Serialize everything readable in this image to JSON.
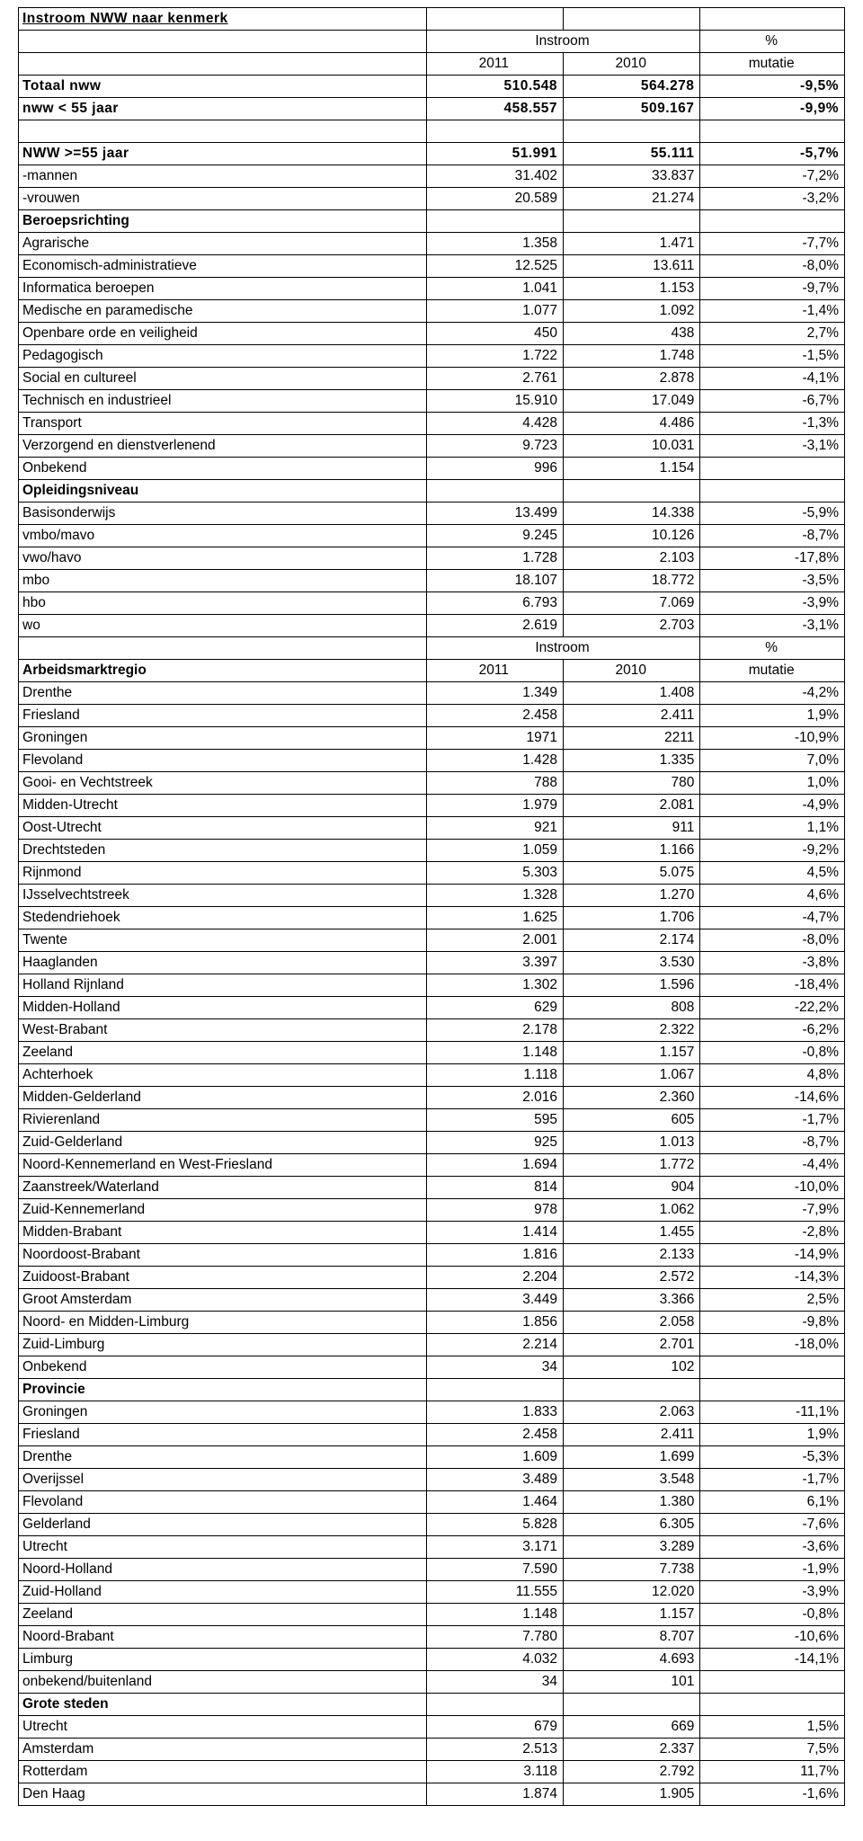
{
  "title": "Instroom NWW naar kenmerk",
  "headers": {
    "instroom": "Instroom",
    "pct": "%",
    "y2011": "2011",
    "y2010": "2010",
    "mutatie": "mutatie"
  },
  "rows": [
    {
      "label": "Totaal nww",
      "v1": "510.548",
      "v2": "564.278",
      "pct": "-9,5%",
      "style": "heavy"
    },
    {
      "label": "nww < 55 jaar",
      "v1": "458.557",
      "v2": "509.167",
      "pct": "-9,9%",
      "style": "heavy"
    },
    {
      "blank": true
    },
    {
      "label": "NWW >=55 jaar",
      "v1": "51.991",
      "v2": "55.111",
      "pct": "-5,7%",
      "style": "heavy"
    },
    {
      "label": "-mannen",
      "v1": "31.402",
      "v2": "33.837",
      "pct": "-7,2%"
    },
    {
      "label": "-vrouwen",
      "v1": "20.589",
      "v2": "21.274",
      "pct": "-3,2%"
    },
    {
      "label": "Beroepsrichting",
      "style": "bold",
      "section": true
    },
    {
      "label": "Agrarische",
      "v1": "1.358",
      "v2": "1.471",
      "pct": "-7,7%"
    },
    {
      "label": "Economisch-administratieve",
      "v1": "12.525",
      "v2": "13.611",
      "pct": "-8,0%"
    },
    {
      "label": "Informatica beroepen",
      "v1": "1.041",
      "v2": "1.153",
      "pct": "-9,7%"
    },
    {
      "label": "Medische en paramedische",
      "v1": "1.077",
      "v2": "1.092",
      "pct": "-1,4%"
    },
    {
      "label": "Openbare orde en veiligheid",
      "v1": "450",
      "v2": "438",
      "pct": "2,7%"
    },
    {
      "label": "Pedagogisch",
      "v1": "1.722",
      "v2": "1.748",
      "pct": "-1,5%"
    },
    {
      "label": "Social en cultureel",
      "v1": "2.761",
      "v2": "2.878",
      "pct": "-4,1%"
    },
    {
      "label": "Technisch en industrieel",
      "v1": "15.910",
      "v2": "17.049",
      "pct": "-6,7%"
    },
    {
      "label": "Transport",
      "v1": "4.428",
      "v2": "4.486",
      "pct": "-1,3%"
    },
    {
      "label": "Verzorgend en dienstverlenend",
      "v1": "9.723",
      "v2": "10.031",
      "pct": "-3,1%"
    },
    {
      "label": "Onbekend",
      "v1": "996",
      "v2": "1.154",
      "pct": ""
    },
    {
      "label": "Opleidingsniveau",
      "style": "bold",
      "section": true
    },
    {
      "label": "Basisonderwijs",
      "v1": "13.499",
      "v2": "14.338",
      "pct": "-5,9%"
    },
    {
      "label": "vmbo/mavo",
      "v1": "9.245",
      "v2": "10.126",
      "pct": "-8,7%"
    },
    {
      "label": "vwo/havo",
      "v1": "1.728",
      "v2": "2.103",
      "pct": "-17,8%"
    },
    {
      "label": "mbo",
      "v1": "18.107",
      "v2": "18.772",
      "pct": "-3,5%"
    },
    {
      "label": "hbo",
      "v1": "6.793",
      "v2": "7.069",
      "pct": "-3,9%"
    },
    {
      "label": "wo",
      "v1": "2.619",
      "v2": "2.703",
      "pct": "-3,1%"
    },
    {
      "subheader": true
    },
    {
      "label": "Arbeidsmarktregio",
      "v1": "2011",
      "v2": "2010",
      "pct": "mutatie",
      "style": "bold",
      "subheader2": true
    },
    {
      "label": "Drenthe",
      "v1": "1.349",
      "v2": "1.408",
      "pct": "-4,2%"
    },
    {
      "label": "Friesland",
      "v1": "2.458",
      "v2": "2.411",
      "pct": "1,9%"
    },
    {
      "label": "Groningen",
      "v1": "1971",
      "v2": "2211",
      "pct": "-10,9%"
    },
    {
      "label": "Flevoland",
      "v1": "1.428",
      "v2": "1.335",
      "pct": "7,0%"
    },
    {
      "label": "Gooi- en Vechtstreek",
      "v1": "788",
      "v2": "780",
      "pct": "1,0%"
    },
    {
      "label": "Midden-Utrecht",
      "v1": "1.979",
      "v2": "2.081",
      "pct": "-4,9%"
    },
    {
      "label": "Oost-Utrecht",
      "v1": "921",
      "v2": "911",
      "pct": "1,1%"
    },
    {
      "label": "Drechtsteden",
      "v1": "1.059",
      "v2": "1.166",
      "pct": "-9,2%"
    },
    {
      "label": "Rijnmond",
      "v1": "5.303",
      "v2": "5.075",
      "pct": "4,5%"
    },
    {
      "label": "IJsselvechtstreek",
      "v1": "1.328",
      "v2": "1.270",
      "pct": "4,6%"
    },
    {
      "label": "Stedendriehoek",
      "v1": "1.625",
      "v2": "1.706",
      "pct": "-4,7%"
    },
    {
      "label": "Twente",
      "v1": "2.001",
      "v2": "2.174",
      "pct": "-8,0%"
    },
    {
      "label": "Haaglanden",
      "v1": "3.397",
      "v2": "3.530",
      "pct": "-3,8%"
    },
    {
      "label": "Holland Rijnland",
      "v1": "1.302",
      "v2": "1.596",
      "pct": "-18,4%"
    },
    {
      "label": "Midden-Holland",
      "v1": "629",
      "v2": "808",
      "pct": "-22,2%"
    },
    {
      "label": "West-Brabant",
      "v1": "2.178",
      "v2": "2.322",
      "pct": "-6,2%"
    },
    {
      "label": "Zeeland",
      "v1": "1.148",
      "v2": "1.157",
      "pct": "-0,8%"
    },
    {
      "label": "Achterhoek",
      "v1": "1.118",
      "v2": "1.067",
      "pct": "4,8%"
    },
    {
      "label": "Midden-Gelderland",
      "v1": "2.016",
      "v2": "2.360",
      "pct": "-14,6%"
    },
    {
      "label": "Rivierenland",
      "v1": "595",
      "v2": "605",
      "pct": "-1,7%"
    },
    {
      "label": "Zuid-Gelderland",
      "v1": "925",
      "v2": "1.013",
      "pct": "-8,7%"
    },
    {
      "label": "Noord-Kennemerland en West-Friesland",
      "v1": "1.694",
      "v2": "1.772",
      "pct": "-4,4%"
    },
    {
      "label": "Zaanstreek/Waterland",
      "v1": "814",
      "v2": "904",
      "pct": "-10,0%"
    },
    {
      "label": "Zuid-Kennemerland",
      "v1": "978",
      "v2": "1.062",
      "pct": "-7,9%"
    },
    {
      "label": "Midden-Brabant",
      "v1": "1.414",
      "v2": "1.455",
      "pct": "-2,8%"
    },
    {
      "label": "Noordoost-Brabant",
      "v1": "1.816",
      "v2": "2.133",
      "pct": "-14,9%"
    },
    {
      "label": "Zuidoost-Brabant",
      "v1": "2.204",
      "v2": "2.572",
      "pct": "-14,3%"
    },
    {
      "label": "Groot Amsterdam",
      "v1": "3.449",
      "v2": "3.366",
      "pct": "2,5%"
    },
    {
      "label": "Noord- en Midden-Limburg",
      "v1": "1.856",
      "v2": "2.058",
      "pct": "-9,8%"
    },
    {
      "label": "Zuid-Limburg",
      "v1": "2.214",
      "v2": "2.701",
      "pct": "-18,0%"
    },
    {
      "label": "Onbekend",
      "v1": "34",
      "v2": "102",
      "pct": ""
    },
    {
      "label": "Provincie",
      "style": "bold",
      "section": true
    },
    {
      "label": "Groningen",
      "v1": "1.833",
      "v2": "2.063",
      "pct": "-11,1%"
    },
    {
      "label": "Friesland",
      "v1": "2.458",
      "v2": "2.411",
      "pct": "1,9%"
    },
    {
      "label": "Drenthe",
      "v1": "1.609",
      "v2": "1.699",
      "pct": "-5,3%"
    },
    {
      "label": "Overijssel",
      "v1": "3.489",
      "v2": "3.548",
      "pct": "-1,7%"
    },
    {
      "label": "Flevoland",
      "v1": "1.464",
      "v2": "1.380",
      "pct": "6,1%"
    },
    {
      "label": "Gelderland",
      "v1": "5.828",
      "v2": "6.305",
      "pct": "-7,6%"
    },
    {
      "label": "Utrecht",
      "v1": "3.171",
      "v2": "3.289",
      "pct": "-3,6%"
    },
    {
      "label": "Noord-Holland",
      "v1": "7.590",
      "v2": "7.738",
      "pct": "-1,9%"
    },
    {
      "label": "Zuid-Holland",
      "v1": "11.555",
      "v2": "12.020",
      "pct": "-3,9%"
    },
    {
      "label": "Zeeland",
      "v1": "1.148",
      "v2": "1.157",
      "pct": "-0,8%"
    },
    {
      "label": "Noord-Brabant",
      "v1": "7.780",
      "v2": "8.707",
      "pct": "-10,6%"
    },
    {
      "label": "Limburg",
      "v1": "4.032",
      "v2": "4.693",
      "pct": "-14,1%"
    },
    {
      "label": "onbekend/buitenland",
      "v1": "34",
      "v2": "101",
      "pct": ""
    },
    {
      "label": "Grote steden",
      "style": "bold",
      "section": true
    },
    {
      "label": "Utrecht",
      "v1": "679",
      "v2": "669",
      "pct": "1,5%"
    },
    {
      "label": "Amsterdam",
      "v1": "2.513",
      "v2": "2.337",
      "pct": "7,5%"
    },
    {
      "label": "Rotterdam",
      "v1": "3.118",
      "v2": "2.792",
      "pct": "11,7%"
    },
    {
      "label": "Den Haag",
      "v1": "1.874",
      "v2": "1.905",
      "pct": "-1,6%"
    }
  ]
}
